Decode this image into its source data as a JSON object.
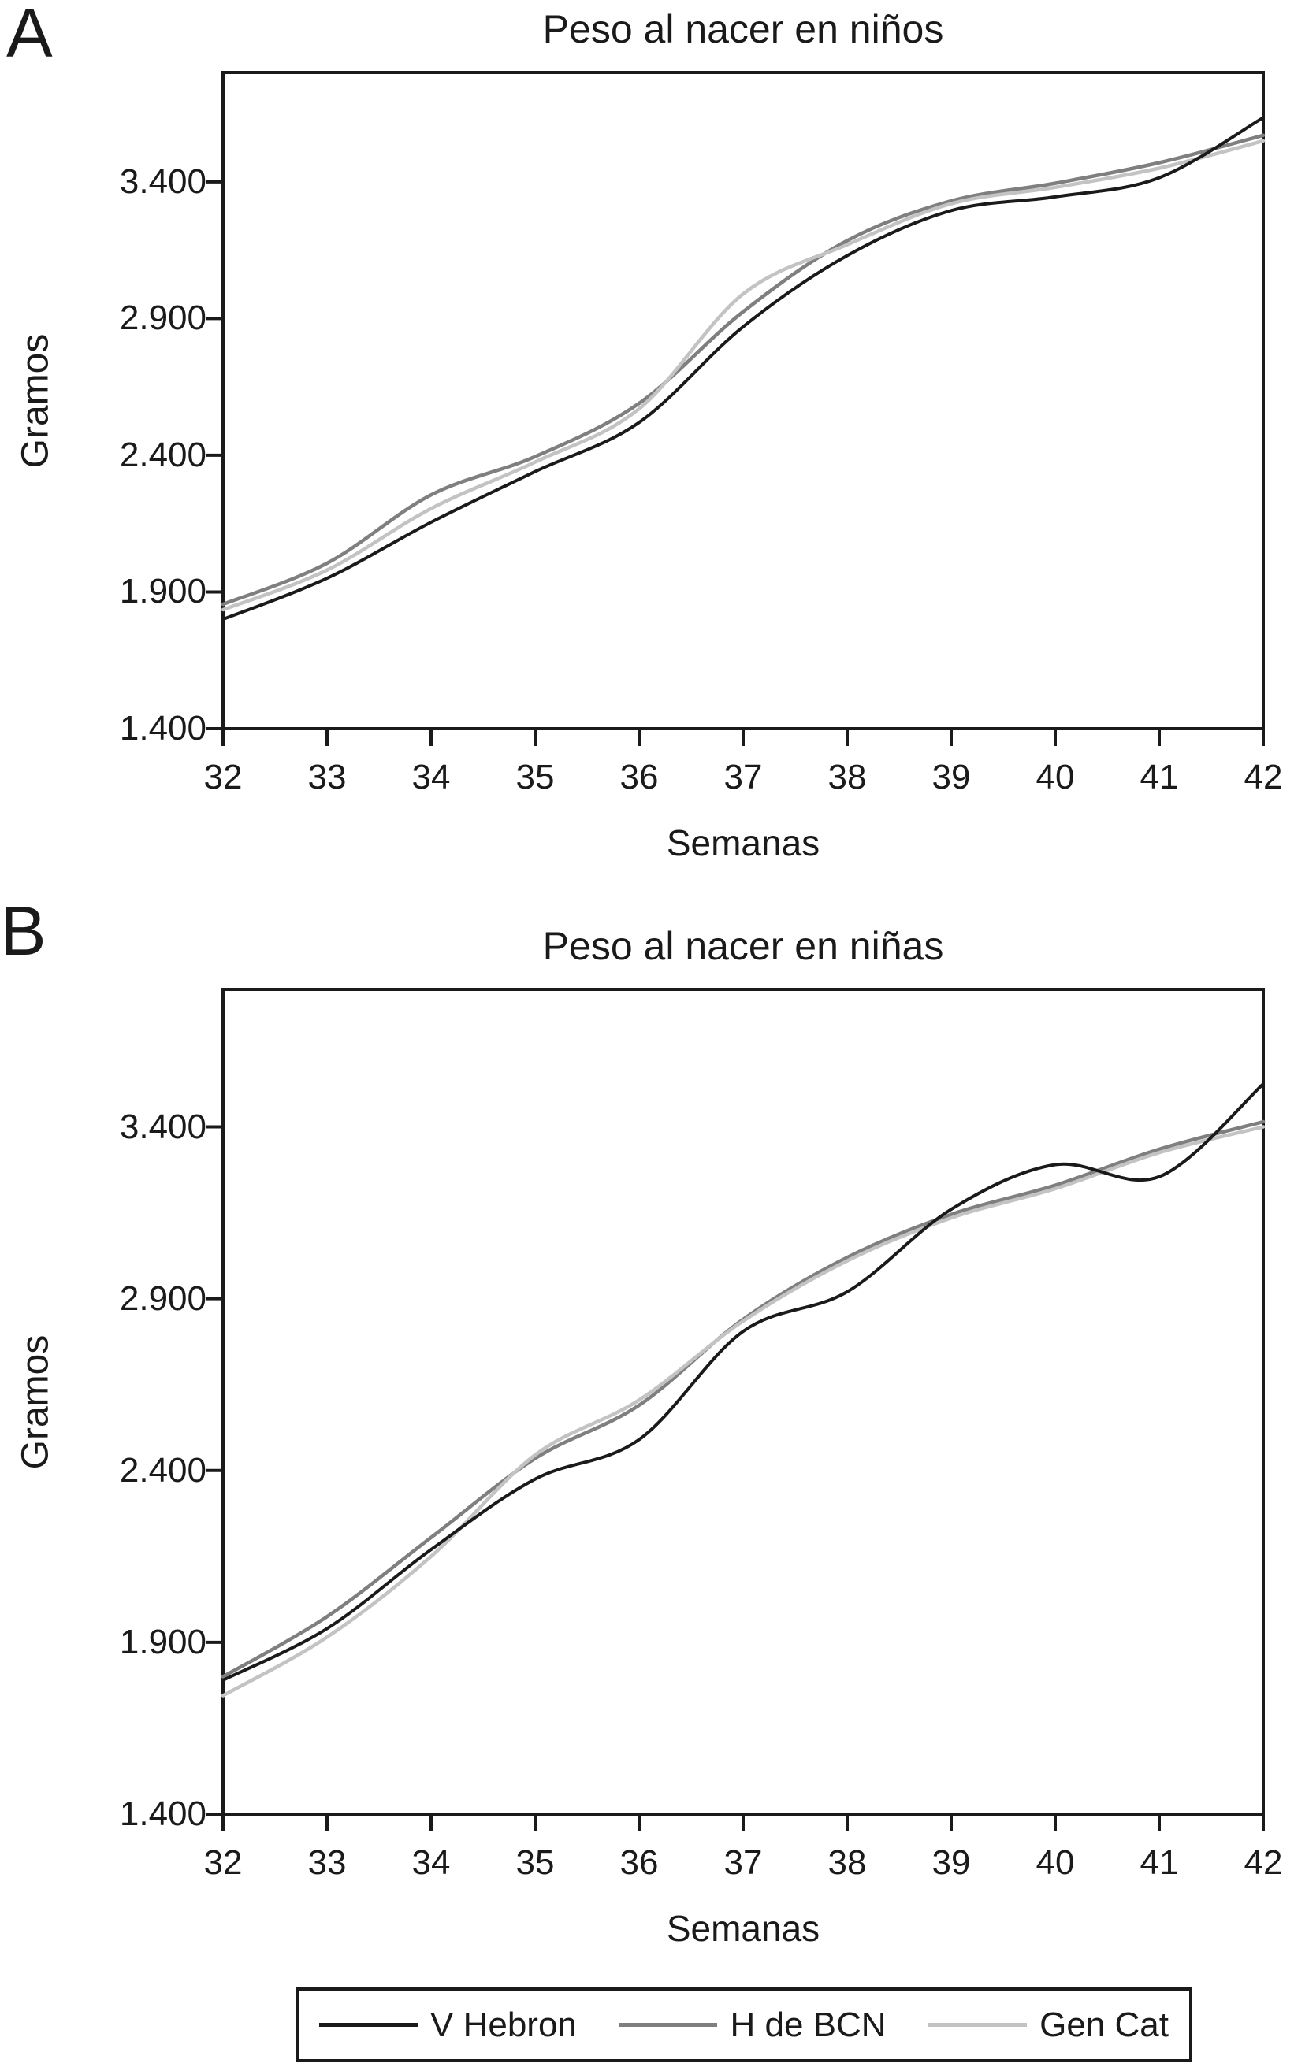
{
  "colors": {
    "axis": "#1a1a1a",
    "background": "#ffffff",
    "v_hebron": "#1a1a1a",
    "h_de_bcn": "#7f7f7f",
    "gen_cat": "#c3c3c3"
  },
  "panels": [
    {
      "letter": "A",
      "title": "Peso al nacer en niños",
      "ylabel": "Gramos",
      "xlabel": "Semanas"
    },
    {
      "letter": "B",
      "title": "Peso al nacer en niñas",
      "ylabel": "Gramos",
      "xlabel": "Semanas"
    }
  ],
  "legend": {
    "entries": [
      {
        "label": "V Hebron",
        "color": "#1a1a1a"
      },
      {
        "label": "H de BCN",
        "color": "#7f7f7f"
      },
      {
        "label": "Gen Cat",
        "color": "#c3c3c3"
      }
    ]
  },
  "chart_data": [
    {
      "type": "line",
      "title": "Peso al nacer en niños",
      "xlabel": "Semanas",
      "ylabel": "Gramos",
      "x": [
        32,
        33,
        34,
        35,
        36,
        37,
        38,
        39,
        40,
        41,
        42
      ],
      "x_tick_labels": [
        "32",
        "33",
        "34",
        "35",
        "36",
        "37",
        "38",
        "39",
        "40",
        "41",
        "42"
      ],
      "xlim": [
        32,
        42
      ],
      "ylim": [
        1400,
        3800
      ],
      "yticks": [
        1400,
        1900,
        2400,
        2900,
        3400
      ],
      "y_tick_labels": [
        "1.400",
        "1.900",
        "2.400",
        "2.900",
        "3.400"
      ],
      "grid": false,
      "legend_position": "bottom",
      "series": [
        {
          "name": "V Hebron",
          "color": "#1a1a1a",
          "values": [
            1800,
            1950,
            2155,
            2340,
            2520,
            2870,
            3130,
            3295,
            3345,
            3415,
            3635
          ]
        },
        {
          "name": "H de BCN",
          "color": "#7f7f7f",
          "values": [
            1855,
            2005,
            2255,
            2395,
            2590,
            2925,
            3185,
            3330,
            3395,
            3470,
            3570
          ]
        },
        {
          "name": "Gen Cat",
          "color": "#c3c3c3",
          "values": [
            1835,
            1980,
            2205,
            2375,
            2570,
            2990,
            3170,
            3320,
            3380,
            3450,
            3550
          ]
        }
      ]
    },
    {
      "type": "line",
      "title": "Peso al nacer en niñas",
      "xlabel": "Semanas",
      "ylabel": "Gramos",
      "x": [
        32,
        33,
        34,
        35,
        36,
        37,
        38,
        39,
        40,
        41,
        42
      ],
      "x_tick_labels": [
        "32",
        "33",
        "34",
        "35",
        "36",
        "37",
        "38",
        "39",
        "40",
        "41",
        "42"
      ],
      "xlim": [
        32,
        42
      ],
      "ylim": [
        1400,
        3800
      ],
      "yticks": [
        1400,
        1900,
        2400,
        2900,
        3400
      ],
      "y_tick_labels": [
        "1.400",
        "1.900",
        "2.400",
        "2.900",
        "3.400"
      ],
      "grid": false,
      "legend_position": "bottom",
      "series": [
        {
          "name": "V Hebron",
          "color": "#1a1a1a",
          "values": [
            1790,
            1940,
            2170,
            2375,
            2490,
            2805,
            2920,
            3160,
            3290,
            3255,
            3525
          ]
        },
        {
          "name": "H de BCN",
          "color": "#7f7f7f",
          "values": [
            1800,
            1975,
            2205,
            2435,
            2590,
            2840,
            3020,
            3145,
            3230,
            3335,
            3415
          ]
        },
        {
          "name": "Gen Cat",
          "color": "#c3c3c3",
          "values": [
            1745,
            1915,
            2150,
            2445,
            2605,
            2835,
            3010,
            3135,
            3220,
            3325,
            3400
          ]
        }
      ]
    }
  ]
}
